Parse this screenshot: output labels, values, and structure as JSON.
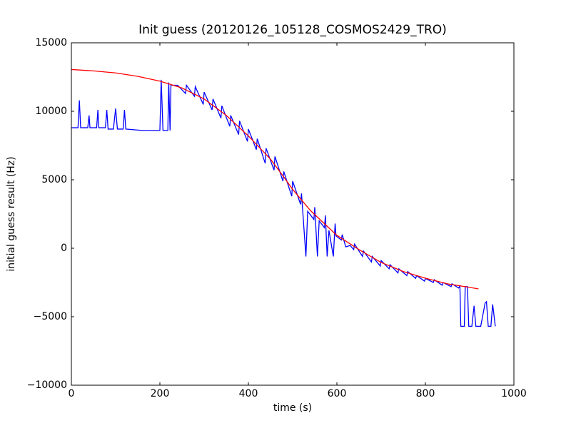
{
  "chart_data": {
    "type": "line",
    "title": "Init guess (20120126_105128_COSMOS2429_TRO)",
    "xlabel": "time (s)",
    "ylabel": "initial guess result (Hz)",
    "xlim": [
      0,
      1000
    ],
    "ylim": [
      -10000,
      15000
    ],
    "xticks": [
      0,
      200,
      400,
      600,
      800,
      1000
    ],
    "yticks": [
      {
        "value": -10000,
        "label": "−10000"
      },
      {
        "value": -5000,
        "label": "−5000"
      },
      0,
      5000,
      10000,
      15000
    ],
    "grid": false,
    "series": [
      {
        "color": "#0000ff",
        "x": [
          0,
          15,
          18,
          21,
          37,
          40,
          42,
          57,
          60,
          62,
          77,
          80,
          83,
          95,
          100,
          104,
          117,
          120,
          123,
          160,
          200,
          203,
          207,
          218,
          220,
          223,
          225,
          240,
          258,
          260,
          278,
          280,
          298,
          300,
          318,
          320,
          338,
          340,
          358,
          360,
          378,
          380,
          398,
          400,
          418,
          420,
          438,
          440,
          458,
          460,
          478,
          480,
          498,
          500,
          518,
          520,
          530,
          534,
          548,
          550,
          556,
          560,
          572,
          574,
          578,
          582,
          592,
          596,
          598,
          610,
          612,
          620,
          630,
          638,
          640,
          658,
          660,
          678,
          680,
          698,
          700,
          718,
          720,
          738,
          740,
          758,
          760,
          778,
          780,
          798,
          800,
          818,
          820,
          838,
          840,
          858,
          860,
          875,
          878,
          880,
          888,
          890,
          895,
          898,
          905,
          910,
          914,
          925,
          935,
          938,
          942,
          948,
          952,
          958
        ],
        "values": [
          8800,
          8800,
          10800,
          8800,
          8800,
          9700,
          8800,
          8800,
          10100,
          8800,
          8800,
          10100,
          8700,
          8700,
          10200,
          8700,
          8700,
          10100,
          8700,
          8600,
          8600,
          12300,
          8600,
          8600,
          12100,
          8600,
          11900,
          11900,
          11300,
          11900,
          11100,
          11800,
          10500,
          11400,
          10100,
          10900,
          9500,
          10400,
          8900,
          9700,
          8300,
          9300,
          7800,
          8700,
          7200,
          8000,
          6200,
          7300,
          5700,
          6700,
          4900,
          5600,
          3800,
          4900,
          3200,
          4000,
          -600,
          2700,
          2100,
          3000,
          -600,
          2000,
          1500,
          2400,
          -600,
          1300,
          -600,
          1800,
          900,
          600,
          1000,
          100,
          200,
          -100,
          300,
          -600,
          -200,
          -1000,
          -600,
          -1300,
          -900,
          -1500,
          -1200,
          -1800,
          -1500,
          -2000,
          -1700,
          -2200,
          -2000,
          -2400,
          -2200,
          -2500,
          -2300,
          -2700,
          -2500,
          -2800,
          -2600,
          -2900,
          -2750,
          -5700,
          -5700,
          -2800,
          -2800,
          -5700,
          -5700,
          -4200,
          -5700,
          -5700,
          -4000,
          -3900,
          -5700,
          -5700,
          -4100,
          -5700
        ]
      },
      {
        "color": "#ff0000",
        "x": [
          0,
          50,
          100,
          150,
          200,
          250,
          300,
          350,
          400,
          450,
          480,
          500,
          540,
          600,
          650,
          700,
          750,
          800,
          850,
          900,
          920
        ],
        "values": [
          13050,
          12950,
          12800,
          12550,
          12200,
          11700,
          10900,
          9700,
          8200,
          6500,
          5200,
          4300,
          2760,
          940,
          -100,
          -1040,
          -1700,
          -2190,
          -2600,
          -2860,
          -2970
        ]
      }
    ]
  }
}
